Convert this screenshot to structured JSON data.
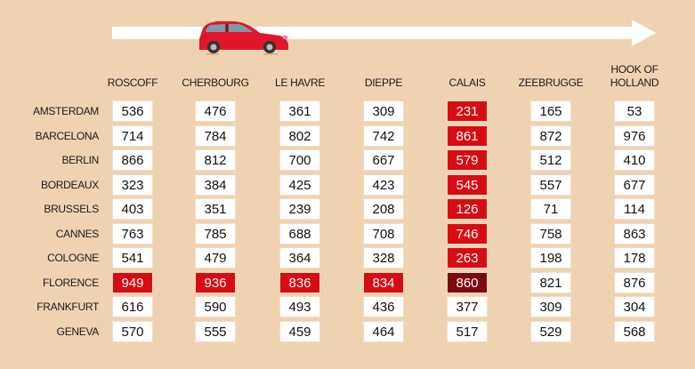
{
  "colors": {
    "background": "#efd3b1",
    "highlight": "#d90b12",
    "best": "#7d0a10",
    "car": "#e0162b"
  },
  "icons": {
    "car": "car-icon",
    "arrow": "arrow-right-icon"
  },
  "ports": [
    "ROSCOFF",
    "CHERBOURG",
    "LE HAVRE",
    "DIEPPE",
    "CALAIS",
    "ZEEBRUGGE",
    "HOOK OF HOLLAND"
  ],
  "rows": [
    {
      "city": "AMSTERDAM",
      "values": [
        536,
        476,
        361,
        309,
        231,
        165,
        53
      ],
      "highlight": [
        "",
        "",
        "",
        "",
        "red",
        "",
        ""
      ]
    },
    {
      "city": "BARCELONA",
      "values": [
        714,
        784,
        802,
        742,
        861,
        872,
        976
      ],
      "highlight": [
        "",
        "",
        "",
        "",
        "red",
        "",
        ""
      ]
    },
    {
      "city": "BERLIN",
      "values": [
        866,
        812,
        700,
        667,
        579,
        512,
        410
      ],
      "highlight": [
        "",
        "",
        "",
        "",
        "red",
        "",
        ""
      ]
    },
    {
      "city": "BORDEAUX",
      "values": [
        323,
        384,
        425,
        423,
        545,
        557,
        677
      ],
      "highlight": [
        "",
        "",
        "",
        "",
        "red",
        "",
        ""
      ]
    },
    {
      "city": "BRUSSELS",
      "values": [
        403,
        351,
        239,
        208,
        126,
        71,
        114
      ],
      "highlight": [
        "",
        "",
        "",
        "",
        "red",
        "",
        ""
      ]
    },
    {
      "city": "CANNES",
      "values": [
        763,
        785,
        688,
        708,
        746,
        758,
        863
      ],
      "highlight": [
        "",
        "",
        "",
        "",
        "red",
        "",
        ""
      ]
    },
    {
      "city": "COLOGNE",
      "values": [
        541,
        479,
        364,
        328,
        263,
        198,
        178
      ],
      "highlight": [
        "",
        "",
        "",
        "",
        "red",
        "",
        ""
      ]
    },
    {
      "city": "FLORENCE",
      "values": [
        949,
        936,
        836,
        834,
        860,
        821,
        876
      ],
      "highlight": [
        "red",
        "red",
        "red",
        "red",
        "dark",
        "",
        ""
      ]
    },
    {
      "city": "FRANKFURT",
      "values": [
        616,
        590,
        493,
        436,
        377,
        309,
        304
      ],
      "highlight": [
        "",
        "",
        "",
        "",
        "",
        "",
        ""
      ]
    },
    {
      "city": "GENEVA",
      "values": [
        570,
        555,
        459,
        464,
        517,
        529,
        568
      ],
      "highlight": [
        "",
        "",
        "",
        "",
        "",
        "",
        ""
      ]
    }
  ]
}
